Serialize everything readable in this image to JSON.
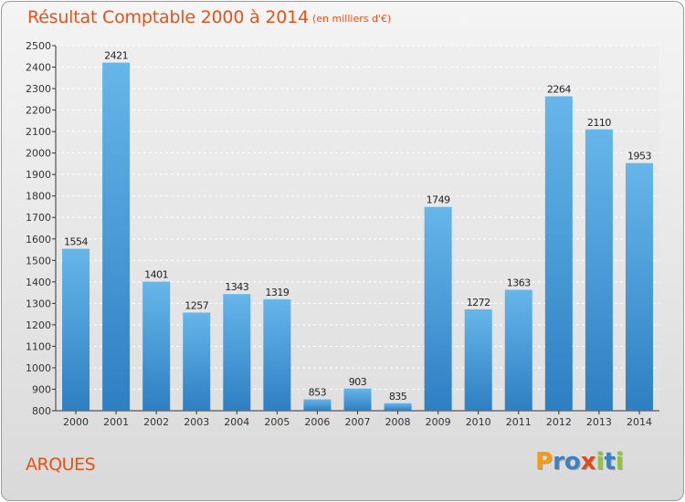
{
  "header": {
    "title": "Résultat Comptable 2000 à 2014",
    "subtitle": "(en milliers d'€)"
  },
  "footer": {
    "town": "ARQUES",
    "logo_letters": [
      {
        "char": "P",
        "color": "#f39c12"
      },
      {
        "char": "r",
        "color": "#3b82c4"
      },
      {
        "char": "o",
        "color": "#3b82c4"
      },
      {
        "char": "x",
        "color": "#e34a1b"
      },
      {
        "char": "i",
        "color": "#8cc63f"
      },
      {
        "char": "t",
        "color": "#3b82c4"
      },
      {
        "char": "i",
        "color": "#8cc63f"
      }
    ]
  },
  "colors": {
    "bar_top": "#66b6ea",
    "bar_bottom": "#2e7fc2",
    "accent": "#e3541b"
  },
  "chart_data": {
    "type": "bar",
    "title": "Résultat Comptable 2000 à 2014",
    "subtitle": "(en milliers d'€)",
    "categories": [
      "2000",
      "2001",
      "2002",
      "2003",
      "2004",
      "2005",
      "2006",
      "2007",
      "2008",
      "2009",
      "2010",
      "2011",
      "2012",
      "2013",
      "2014"
    ],
    "values": [
      1554,
      2421,
      1401,
      1257,
      1343,
      1319,
      853,
      903,
      835,
      1749,
      1272,
      1363,
      2264,
      2110,
      1953
    ],
    "ylim": [
      800,
      2500
    ],
    "yticks": [
      800,
      900,
      1000,
      1100,
      1200,
      1300,
      1400,
      1500,
      1600,
      1700,
      1800,
      1900,
      2000,
      2100,
      2200,
      2300,
      2400,
      2500
    ],
    "grid": true,
    "xlabel": "",
    "ylabel": ""
  }
}
